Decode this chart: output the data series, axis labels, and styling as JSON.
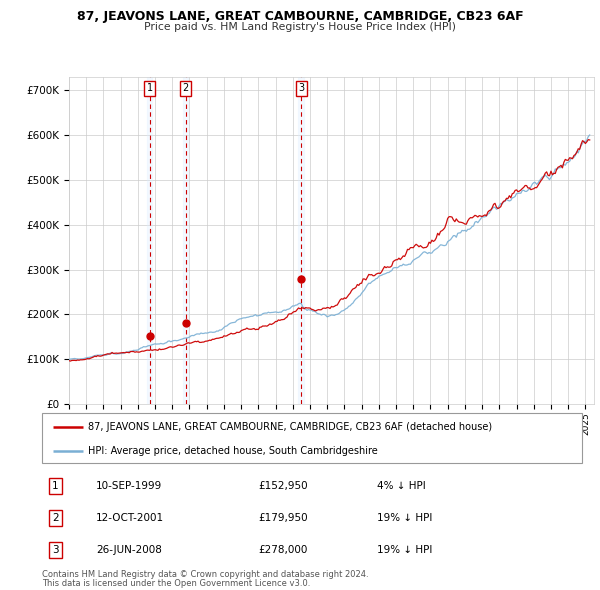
{
  "title": "87, JEAVONS LANE, GREAT CAMBOURNE, CAMBRIDGE, CB23 6AF",
  "subtitle": "Price paid vs. HM Land Registry's House Price Index (HPI)",
  "ylabel_ticks": [
    "£0",
    "£100K",
    "£200K",
    "£300K",
    "£400K",
    "£500K",
    "£600K",
    "£700K"
  ],
  "ytick_values": [
    0,
    100000,
    200000,
    300000,
    400000,
    500000,
    600000,
    700000
  ],
  "ylim": [
    0,
    730000
  ],
  "xlim_start": 1995.0,
  "xlim_end": 2025.5,
  "t_years": [
    1999.7,
    2001.78,
    2008.48
  ],
  "t_prices": [
    152950,
    179950,
    278000
  ],
  "t_nums": [
    "1",
    "2",
    "3"
  ],
  "legend_line1": "87, JEAVONS LANE, GREAT CAMBOURNE, CAMBRIDGE, CB23 6AF (detached house)",
  "legend_line2": "HPI: Average price, detached house, South Cambridgeshire",
  "row_data": [
    [
      "1",
      "10-SEP-1999",
      "£152,950",
      "4% ↓ HPI"
    ],
    [
      "2",
      "12-OCT-2001",
      "£179,950",
      "19% ↓ HPI"
    ],
    [
      "3",
      "26-JUN-2008",
      "£278,000",
      "19% ↓ HPI"
    ]
  ],
  "footer1": "Contains HM Land Registry data © Crown copyright and database right 2024.",
  "footer2": "This data is licensed under the Open Government Licence v3.0.",
  "price_line_color": "#cc0000",
  "hpi_line_color": "#7aafd4",
  "vline_color": "#cc0000",
  "shade_color": "#ddeeff"
}
